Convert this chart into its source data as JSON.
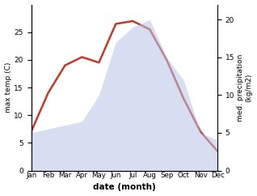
{
  "months": [
    "Jan",
    "Feb",
    "Mar",
    "Apr",
    "May",
    "Jun",
    "Jul",
    "Aug",
    "Sep",
    "Oct",
    "Nov",
    "Dec"
  ],
  "month_indices": [
    1,
    2,
    3,
    4,
    5,
    6,
    7,
    8,
    9,
    10,
    11,
    12
  ],
  "temperature": [
    7,
    14,
    19,
    20.5,
    19.5,
    26.5,
    27,
    25.5,
    20,
    13,
    7,
    3.5
  ],
  "precipitation": [
    5,
    5.5,
    6,
    6.5,
    10,
    17,
    19,
    20,
    15,
    12,
    5,
    4
  ],
  "temp_color": "#c0392b",
  "precip_fill_color": "#b8c4e8",
  "ylabel_left": "max temp (C)",
  "ylabel_right": "med. precipitation\n(kg/m2)",
  "xlabel": "date (month)",
  "ylim_left": [
    0,
    30
  ],
  "ylim_right": [
    0,
    22
  ],
  "yticks_left": [
    0,
    5,
    10,
    15,
    20,
    25
  ],
  "yticks_right": [
    0,
    5,
    10,
    15,
    20
  ],
  "title": ""
}
